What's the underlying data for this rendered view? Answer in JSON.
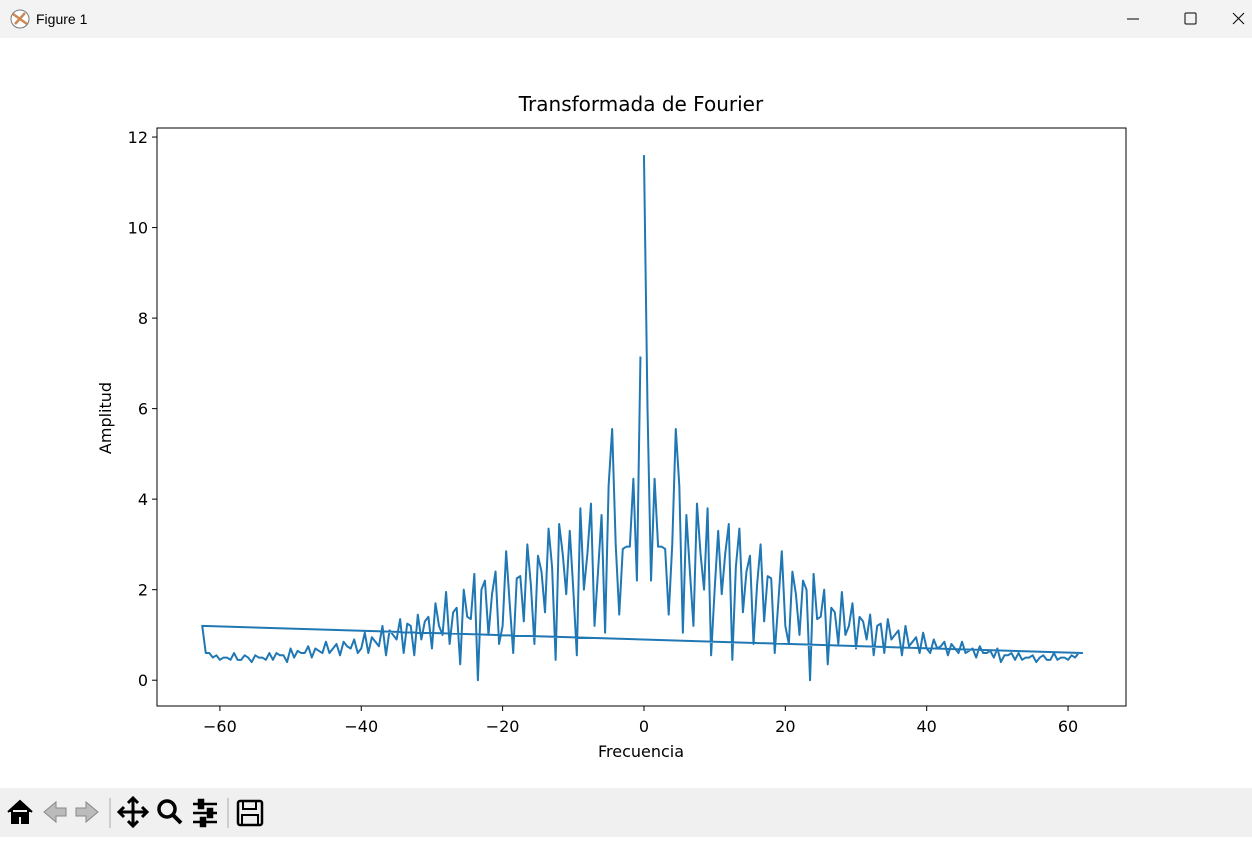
{
  "window": {
    "title": "Figure 1"
  },
  "chart_data": {
    "type": "line",
    "title": "Transformada de Fourier",
    "xlabel": "Frecuencia",
    "ylabel": "Amplitud",
    "color": "#1f77b4",
    "x": [
      0,
      0.5,
      1,
      1.5,
      2,
      2.5,
      3,
      3.5,
      4,
      4.5,
      5,
      5.5,
      6,
      6.5,
      7,
      7.5,
      8,
      8.5,
      9,
      9.5,
      10,
      10.5,
      11,
      11.5,
      12,
      12.5,
      13,
      13.5,
      14,
      14.5,
      15,
      15.5,
      16,
      16.5,
      17,
      17.5,
      18,
      18.5,
      19,
      19.5,
      20,
      20.5,
      21,
      21.5,
      22,
      22.5,
      23,
      23.5,
      24,
      24.5,
      25,
      25.5,
      26,
      26.5,
      27,
      27.5,
      28,
      28.5,
      29,
      29.5,
      30,
      30.5,
      31,
      31.5,
      32,
      32.5,
      33,
      33.5,
      34,
      34.5,
      35,
      35.5,
      36,
      36.5,
      37,
      37.5,
      38,
      38.5,
      39,
      39.5,
      40,
      40.5,
      41,
      41.5,
      42,
      42.5,
      43,
      43.5,
      44,
      44.5,
      45,
      45.5,
      46,
      46.5,
      47,
      47.5,
      48,
      48.5,
      49,
      49.5,
      50,
      50.5,
      51,
      51.5,
      52,
      52.5,
      53,
      53.5,
      54,
      54.5,
      55,
      55.5,
      56,
      56.5,
      57,
      57.5,
      58,
      58.5,
      59,
      59.5,
      60,
      60.5,
      61,
      61.5,
      62,
      -62.5,
      -62,
      -61.5,
      -61,
      -60.5,
      -60,
      -59.5,
      -59,
      -58.5,
      -58,
      -57.5,
      -57,
      -56.5,
      -56,
      -55.5,
      -55,
      -54.5,
      -54,
      -53.5,
      -53,
      -52.5,
      -52,
      -51.5,
      -51,
      -50.5,
      -50,
      -49.5,
      -49,
      -48.5,
      -48,
      -47.5,
      -47,
      -46.5,
      -46,
      -45.5,
      -45,
      -44.5,
      -44,
      -43.5,
      -43,
      -42.5,
      -42,
      -41.5,
      -41,
      -40.5,
      -40,
      -39.5,
      -39,
      -38.5,
      -38,
      -37.5,
      -37,
      -36.5,
      -36,
      -35.5,
      -35,
      -34.5,
      -34,
      -33.5,
      -33,
      -32.5,
      -32,
      -31.5,
      -31,
      -30.5,
      -30,
      -29.5,
      -29,
      -28.5,
      -28,
      -27.5,
      -27,
      -26.5,
      -26,
      -25.5,
      -25,
      -24.5,
      -24,
      -23.5,
      -23,
      -22.5,
      -22,
      -21.5,
      -21,
      -20.5,
      -20,
      -19.5,
      -19,
      -18.5,
      -18,
      -17.5,
      -17,
      -16.5,
      -16,
      -15.5,
      -15,
      -14.5,
      -14,
      -13.5,
      -13,
      -12.5,
      -12,
      -11.5,
      -11,
      -10.5,
      -10,
      -9.5,
      -9,
      -8.5,
      -8,
      -7.5,
      -7,
      -6.5,
      -6,
      -5.5,
      -5,
      -4.5,
      -4,
      -3.5,
      -3,
      -2.5,
      -2,
      -1.5,
      -1,
      -0.5
    ],
    "values": [
      11.6,
      6.0,
      2.2,
      4.45,
      2.95,
      2.95,
      2.9,
      1.45,
      3.0,
      5.55,
      4.3,
      1.05,
      3.65,
      2.4,
      1.2,
      3.9,
      2.8,
      2.0,
      3.8,
      0.55,
      2.0,
      3.3,
      1.9,
      2.8,
      3.45,
      0.45,
      2.5,
      3.35,
      1.5,
      2.4,
      2.75,
      0.8,
      2.1,
      3.0,
      1.3,
      2.3,
      2.25,
      0.6,
      1.7,
      2.85,
      1.2,
      0.8,
      2.4,
      1.9,
      1.0,
      2.2,
      2.0,
      0.0,
      2.35,
      1.35,
      1.4,
      2.0,
      0.35,
      1.6,
      1.5,
      0.8,
      1.95,
      1.0,
      1.2,
      1.7,
      0.7,
      1.4,
      1.3,
      0.9,
      1.45,
      0.55,
      1.2,
      1.25,
      0.6,
      1.35,
      0.9,
      1.0,
      1.1,
      0.55,
      1.2,
      0.75,
      0.85,
      0.95,
      0.6,
      1.05,
      0.7,
      0.6,
      0.9,
      0.7,
      0.75,
      0.85,
      0.55,
      0.8,
      0.7,
      0.6,
      0.85,
      0.6,
      0.65,
      0.7,
      0.5,
      0.75,
      0.6,
      0.6,
      0.65,
      0.5,
      0.7,
      0.4,
      0.55,
      0.55,
      0.6,
      0.45,
      0.6,
      0.45,
      0.5,
      0.5,
      0.55,
      0.4,
      0.5,
      0.55,
      0.45,
      0.45,
      0.6,
      0.45,
      0.5,
      0.5,
      0.45,
      0.55,
      0.5,
      0.6,
      0.6,
      1.2,
      0.6,
      0.6,
      0.5,
      0.55,
      0.45,
      0.5,
      0.5,
      0.45,
      0.6,
      0.45,
      0.45,
      0.55,
      0.5,
      0.4,
      0.55,
      0.5,
      0.5,
      0.45,
      0.6,
      0.45,
      0.6,
      0.55,
      0.55,
      0.4,
      0.7,
      0.5,
      0.65,
      0.6,
      0.6,
      0.75,
      0.5,
      0.7,
      0.65,
      0.6,
      0.85,
      0.6,
      0.7,
      0.8,
      0.55,
      0.85,
      0.75,
      0.7,
      0.9,
      0.6,
      0.7,
      1.05,
      0.6,
      0.95,
      0.85,
      0.75,
      1.2,
      0.55,
      1.1,
      1.0,
      0.9,
      1.35,
      0.6,
      1.25,
      1.2,
      0.55,
      1.45,
      0.9,
      1.3,
      1.4,
      0.7,
      1.7,
      1.2,
      1.0,
      1.95,
      0.8,
      1.5,
      1.6,
      0.35,
      2.0,
      1.4,
      1.35,
      2.35,
      0.0,
      2.0,
      2.2,
      1.0,
      1.9,
      2.4,
      0.8,
      1.2,
      2.85,
      1.7,
      0.6,
      2.25,
      2.3,
      1.3,
      3.0,
      2.1,
      0.8,
      2.75,
      2.4,
      1.5,
      3.35,
      2.5,
      0.45,
      3.45,
      2.8,
      1.9,
      3.3,
      2.0,
      0.55,
      3.8,
      2.0,
      2.8,
      3.9,
      1.2,
      2.4,
      3.65,
      1.05,
      4.3,
      5.55,
      3.0,
      1.45,
      2.9,
      2.95,
      2.95,
      4.45,
      2.2,
      7.15
    ],
    "xlim": [
      -68.9,
      68.2
    ],
    "ylim": [
      -0.57,
      12.2
    ],
    "xticks": [
      {
        "value": -60,
        "label": "−60"
      },
      {
        "value": -40,
        "label": "−40"
      },
      {
        "value": -20,
        "label": "−20"
      },
      0,
      20,
      40,
      60
    ],
    "yticks": [
      0,
      2,
      4,
      6,
      8,
      10,
      12
    ]
  }
}
